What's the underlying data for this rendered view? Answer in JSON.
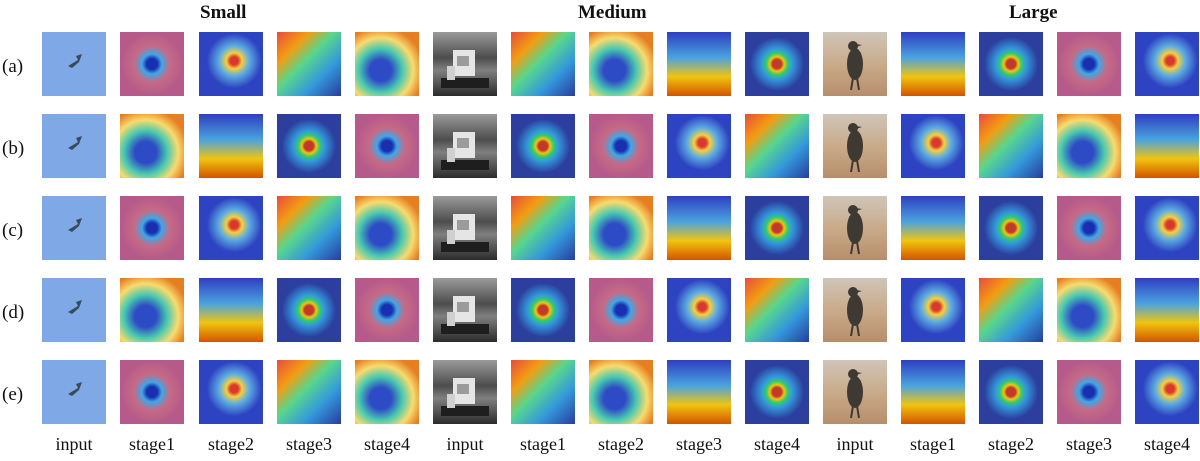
{
  "groups": [
    "Small",
    "Medium",
    "Large"
  ],
  "row_labels": [
    "(a)",
    "(b)",
    "(c)",
    "(d)",
    "(e)"
  ],
  "column_labels": [
    "input",
    "stage1",
    "stage2",
    "stage3",
    "stage4"
  ]
}
